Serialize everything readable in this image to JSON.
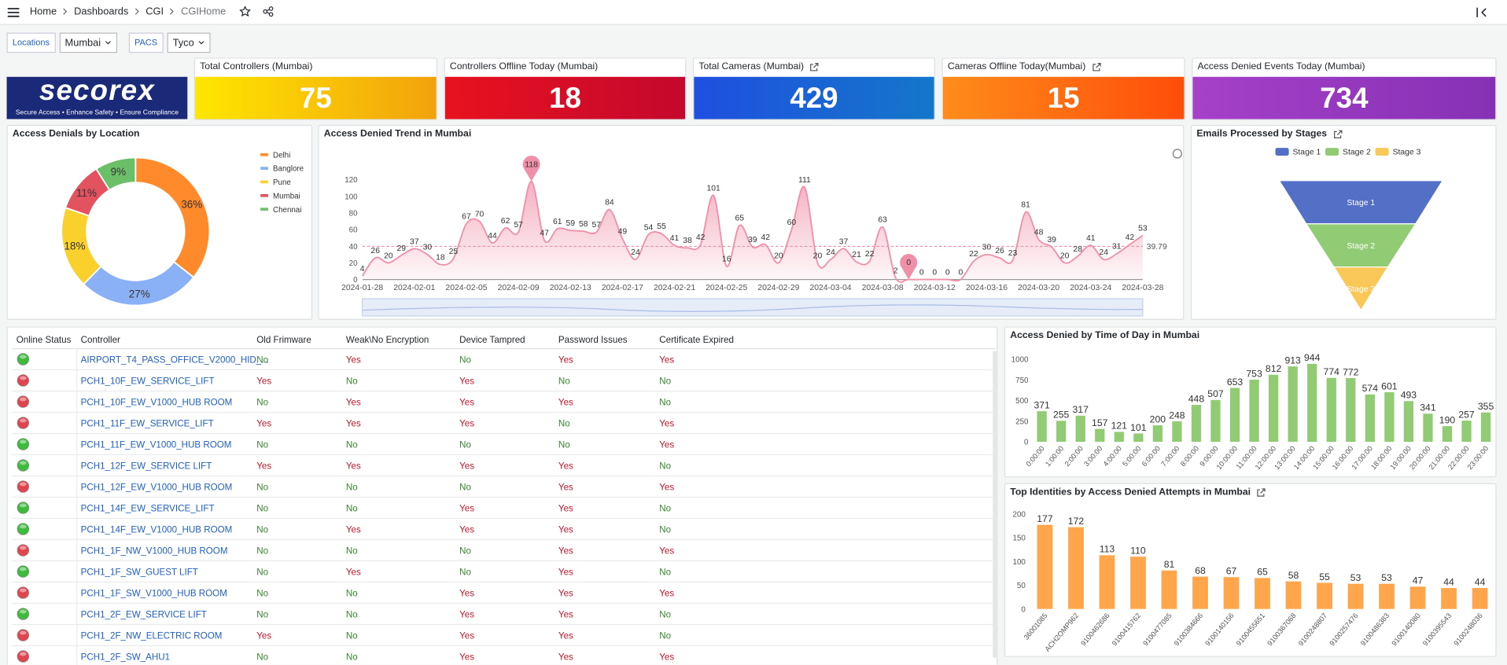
{
  "nav": {
    "breadcrumb": [
      "Home",
      "Dashboards",
      "CGI",
      "CGIHome"
    ]
  },
  "filters": [
    {
      "label": "Locations",
      "value": "Mumbai"
    },
    {
      "label": "PACS",
      "value": "Tyco"
    }
  ],
  "logo": {
    "name": "secorex",
    "tagline": "Secure Access • Enhance Safety • Ensure Compliance"
  },
  "stats": [
    {
      "title": "Total Controllers (Mumbai)",
      "value": 75,
      "colors": [
        "#ffe600",
        "#f2a20c"
      ]
    },
    {
      "title": "Controllers Offline Today (Mumbai)",
      "value": 18,
      "colors": [
        "#e8121e",
        "#c4082e"
      ]
    },
    {
      "title": "Total Cameras (Mumbai)",
      "value": 429,
      "link": true,
      "colors": [
        "#1f4fe0",
        "#1477c9"
      ]
    },
    {
      "title": "Cameras Offline Today(Mumbai)",
      "value": 15,
      "link": true,
      "colors": [
        "#ff8c1a",
        "#ff4d0a"
      ]
    },
    {
      "title": "Access Denied Events Today (Mumbai)",
      "value": 734,
      "colors": [
        "#a640c9",
        "#8631b5"
      ]
    }
  ],
  "chart_data": [
    {
      "type": "pie",
      "title": "Access Denials by Location",
      "categories": [
        "Delhi",
        "Banglore",
        "Pune",
        "Mumbai",
        "Chennai"
      ],
      "values": [
        36,
        27,
        18,
        11,
        9
      ],
      "value_labels": [
        "36%",
        "27%",
        "18%",
        "11%",
        "9%"
      ],
      "colors": [
        "#ff8a2b",
        "#8ab0f5",
        "#fad02c",
        "#e3525f",
        "#6cbf69"
      ],
      "legend": "right"
    },
    {
      "type": "line",
      "title": "Access Denied Trend in Mumbai",
      "color": "#f08fa8",
      "x": [
        "2024-01-28",
        "2024-01-29",
        "2024-01-30",
        "2024-01-31",
        "2024-02-01",
        "2024-02-02",
        "2024-02-03",
        "2024-02-04",
        "2024-02-05",
        "2024-02-06",
        "2024-02-07",
        "2024-02-08",
        "2024-02-09",
        "2024-02-10",
        "2024-02-11",
        "2024-02-12",
        "2024-02-13",
        "2024-02-14",
        "2024-02-15",
        "2024-02-16",
        "2024-02-17",
        "2024-02-18",
        "2024-02-19",
        "2024-02-20",
        "2024-02-21",
        "2024-02-22",
        "2024-02-23",
        "2024-02-24",
        "2024-02-25",
        "2024-02-26",
        "2024-02-27",
        "2024-02-28",
        "2024-02-29",
        "2024-03-01",
        "2024-03-02",
        "2024-03-03",
        "2024-03-04",
        "2024-03-05",
        "2024-03-06",
        "2024-03-07",
        "2024-03-08",
        "2024-03-09",
        "2024-03-10",
        "2024-03-11",
        "2024-03-12",
        "2024-03-13",
        "2024-03-14",
        "2024-03-15",
        "2024-03-16",
        "2024-03-17",
        "2024-03-18",
        "2024-03-19",
        "2024-03-20",
        "2024-03-21",
        "2024-03-22",
        "2024-03-23",
        "2024-03-24",
        "2024-03-25",
        "2024-03-26",
        "2024-03-27",
        "2024-03-28"
      ],
      "values": [
        4,
        26,
        20,
        29,
        37,
        30,
        18,
        25,
        67,
        70,
        44,
        62,
        57,
        118,
        47,
        61,
        59,
        58,
        57,
        84,
        49,
        24,
        54,
        55,
        41,
        38,
        42,
        101,
        16,
        65,
        39,
        42,
        20,
        60,
        111,
        20,
        24,
        37,
        21,
        22,
        63,
        2,
        0,
        0,
        0,
        0,
        0,
        22,
        30,
        26,
        23,
        81,
        48,
        39,
        20,
        28,
        41,
        24,
        31,
        42,
        53
      ],
      "mean": 39.79,
      "ylim": [
        0,
        120
      ],
      "yticks": [
        0,
        20,
        40,
        60,
        80,
        100,
        120
      ]
    },
    {
      "type": "funnel",
      "title": "Emails Processed by Stages",
      "link": true,
      "categories": [
        "Stage 1",
        "Stage 2",
        "Stage 3"
      ],
      "values": [
        100,
        67,
        33
      ],
      "colors": [
        "#5470c6",
        "#91cc75",
        "#fac858"
      ]
    },
    {
      "type": "bar",
      "title": "Access Denied by Time of Day in Mumbai",
      "color": "#91cc75",
      "categories": [
        "0:00:00",
        "1:00:00",
        "2:00:00",
        "3:00:00",
        "4:00:00",
        "5:00:00",
        "6:00:00",
        "7:00:00",
        "8:00:00",
        "9:00:00",
        "10:00:00",
        "11:00:00",
        "12:00:00",
        "13:00:00",
        "14:00:00",
        "15:00:00",
        "16:00:00",
        "17:00:00",
        "18:00:00",
        "19:00:00",
        "20:00:00",
        "21:00:00",
        "22:00:00",
        "23:00:00"
      ],
      "values": [
        371,
        255,
        317,
        157,
        121,
        101,
        200,
        248,
        448,
        507,
        653,
        753,
        812,
        913,
        944,
        774,
        772,
        574,
        601,
        493,
        341,
        190,
        257,
        355
      ],
      "ylim": [
        0,
        1000
      ],
      "yticks": [
        0,
        250,
        500,
        750,
        1000
      ]
    },
    {
      "type": "bar",
      "title": "Top Identities by Access Denied Attempts in Mumbai",
      "link": true,
      "color": "#ffa64d",
      "categories": [
        "36001085",
        "ACH2OMP962",
        "9100462686",
        "9100415762",
        "9100477085",
        "9100384666",
        "9100140156",
        "9100455651",
        "9100367068",
        "9100248807",
        "9100257476",
        "9100486383",
        "9100140080",
        "9100395543",
        "9100248036"
      ],
      "values": [
        177,
        172,
        113,
        110,
        81,
        68,
        67,
        65,
        58,
        55,
        53,
        53,
        47,
        44,
        44
      ],
      "ylim": [
        0,
        200
      ],
      "yticks": [
        0,
        50,
        100,
        150,
        200
      ]
    }
  ],
  "table": {
    "columns": [
      "Online Status",
      "Controller",
      "Old Frimware",
      "Weak\\No Encryption",
      "Device Tampred",
      "Password Issues",
      "Certificate Expired"
    ],
    "flag_colors": {
      "Yes": "#c4162a",
      "No": "#37872d"
    },
    "status_colors": {
      "true": "#3dbb3d",
      "false": "#e0444f"
    },
    "rows": [
      {
        "online": true,
        "cells": [
          "AIRPORT_T4_PASS_OFFICE_V2000_HID_...",
          "No",
          "Yes",
          "No",
          "Yes",
          "Yes"
        ]
      },
      {
        "online": false,
        "cells": [
          "PCH1_10F_EW_SERVICE_LIFT",
          "Yes",
          "No",
          "Yes",
          "No",
          "No"
        ]
      },
      {
        "online": false,
        "cells": [
          "PCH1_10F_EW_V1000_HUB ROOM",
          "No",
          "Yes",
          "Yes",
          "Yes",
          "No"
        ]
      },
      {
        "online": false,
        "cells": [
          "PCH1_11F_EW_SERVICE_LIFT",
          "Yes",
          "Yes",
          "Yes",
          "No",
          "Yes"
        ]
      },
      {
        "online": true,
        "cells": [
          "PCH1_11F_EW_V1000_HUB ROOM",
          "No",
          "No",
          "No",
          "No",
          "Yes"
        ]
      },
      {
        "online": true,
        "cells": [
          "PCH1_12F_EW_SERVICE LIFT",
          "Yes",
          "Yes",
          "Yes",
          "Yes",
          "No"
        ]
      },
      {
        "online": false,
        "cells": [
          "PCH1_12F_EW_V1000_HUB ROOM",
          "No",
          "No",
          "No",
          "Yes",
          "Yes"
        ]
      },
      {
        "online": true,
        "cells": [
          "PCH1_14F_EW_SERVICE_LIFT",
          "No",
          "No",
          "Yes",
          "Yes",
          "No"
        ]
      },
      {
        "online": true,
        "cells": [
          "PCH1_14F_EW_V1000_HUB ROOM",
          "No",
          "Yes",
          "Yes",
          "Yes",
          "No"
        ]
      },
      {
        "online": false,
        "cells": [
          "PCH1_1F_NW_V1000_HUB ROOM",
          "No",
          "No",
          "No",
          "Yes",
          "Yes"
        ]
      },
      {
        "online": true,
        "cells": [
          "PCH1_1F_SW_GUEST LIFT",
          "No",
          "Yes",
          "No",
          "Yes",
          "No"
        ]
      },
      {
        "online": false,
        "cells": [
          "PCH1_1F_SW_V1000_HUB ROOM",
          "No",
          "No",
          "Yes",
          "Yes",
          "Yes"
        ]
      },
      {
        "online": true,
        "cells": [
          "PCH1_2F_EW_SERVICE LIFT",
          "No",
          "No",
          "Yes",
          "Yes",
          "No"
        ]
      },
      {
        "online": false,
        "cells": [
          "PCH1_2F_NW_ELECTRIC ROOM",
          "Yes",
          "No",
          "Yes",
          "Yes",
          "No"
        ]
      },
      {
        "online": false,
        "cells": [
          "PCH1_2F_SW_AHU1",
          "No",
          "No",
          "Yes",
          "Yes",
          "Yes"
        ]
      }
    ]
  }
}
